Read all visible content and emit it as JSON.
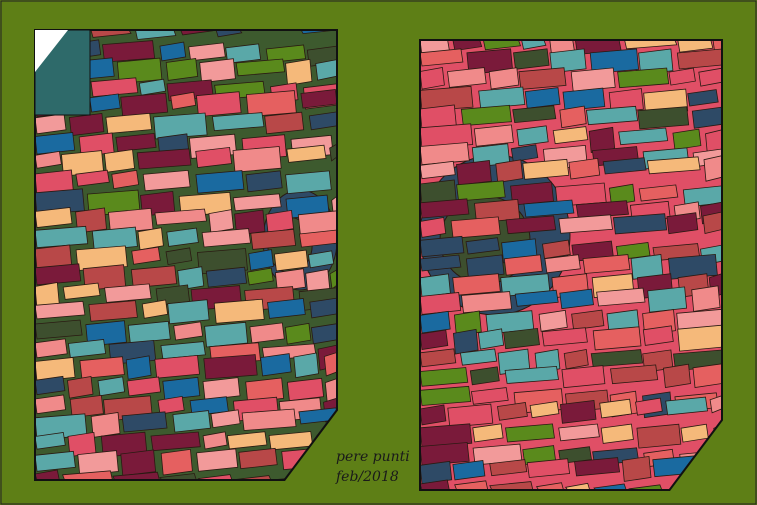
{
  "artwork": {
    "signature": "pere punti",
    "date": "feb/2018",
    "palette": {
      "background": "#5e7f16",
      "outline": "#2a1a12",
      "tiles": [
        "#e04f66",
        "#f08a8a",
        "#f5b97a",
        "#3d4f2e",
        "#5a8a1c",
        "#2e4a66",
        "#1a6aa0",
        "#5aa8a8",
        "#7a1a3a",
        "#b84848",
        "#f29a9a",
        "#e56060"
      ]
    }
  }
}
